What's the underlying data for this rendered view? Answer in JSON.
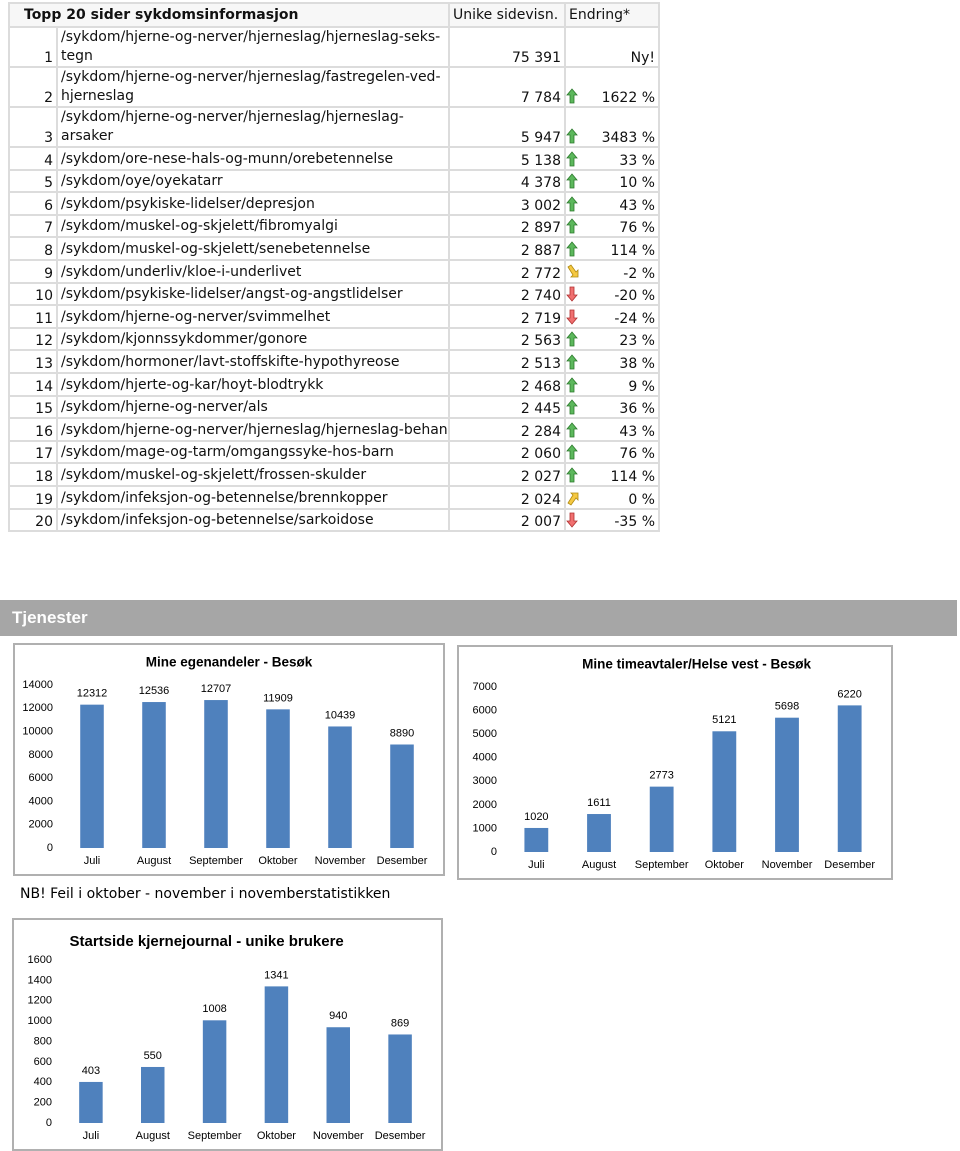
{
  "table": {
    "header": [
      "Topp 20 sider sykdomsinformasjon",
      "Unike sidevisn.",
      "Endring*"
    ],
    "rows": [
      {
        "rank": 1,
        "page": "/sykdom/hjerne-og-nerver/hjerneslag/hjerneslag-seks-tegn",
        "views": "75 391",
        "change": "Ny!"
      },
      {
        "rank": 2,
        "page": "/sykdom/hjerne-og-nerver/hjerneslag/fastregelen-ved-hjerneslag",
        "views": "7 784",
        "change": "1622 %",
        "trend": "up"
      },
      {
        "rank": 3,
        "page": "/sykdom/hjerne-og-nerver/hjerneslag/hjerneslag-arsaker",
        "views": "5 947",
        "change": "3483 %",
        "trend": "up"
      },
      {
        "rank": 4,
        "page": "/sykdom/ore-nese-hals-og-munn/orebetennelse",
        "views": "5 138",
        "change": "33 %",
        "trend": "up"
      },
      {
        "rank": 5,
        "page": "/sykdom/oye/oyekatarr",
        "views": "4 378",
        "change": "10 %",
        "trend": "up"
      },
      {
        "rank": 6,
        "page": "/sykdom/psykiske-lidelser/depresjon",
        "views": "3 002",
        "change": "43 %",
        "trend": "up"
      },
      {
        "rank": 7,
        "page": "/sykdom/muskel-og-skjelett/fibromyalgi",
        "views": "2 897",
        "change": "76 %",
        "trend": "up"
      },
      {
        "rank": 8,
        "page": "/sykdom/muskel-og-skjelett/senebetennelse",
        "views": "2 887",
        "change": "114 %",
        "trend": "up"
      },
      {
        "rank": 9,
        "page": "/sykdom/underliv/kloe-i-underlivet",
        "views": "2 772",
        "change": "-2 %",
        "trend": "down-right"
      },
      {
        "rank": 10,
        "page": "/sykdom/psykiske-lidelser/angst-og-angstlidelser",
        "views": "2 740",
        "change": "-20 %",
        "trend": "down"
      },
      {
        "rank": 11,
        "page": "/sykdom/hjerne-og-nerver/svimmelhet",
        "views": "2 719",
        "change": "-24 %",
        "trend": "down"
      },
      {
        "rank": 12,
        "page": "/sykdom/kjonnssykdommer/gonore",
        "views": "2 563",
        "change": "23 %",
        "trend": "up"
      },
      {
        "rank": 13,
        "page": "/sykdom/hormoner/lavt-stoffskifte-hypothyreose",
        "views": "2 513",
        "change": "38 %",
        "trend": "up"
      },
      {
        "rank": 14,
        "page": "/sykdom/hjerte-og-kar/hoyt-blodtrykk",
        "views": "2 468",
        "change": "9 %",
        "trend": "up"
      },
      {
        "rank": 15,
        "page": "/sykdom/hjerne-og-nerver/als",
        "views": "2 445",
        "change": "36 %",
        "trend": "up"
      },
      {
        "rank": 16,
        "page": "/sykdom/hjerne-og-nerver/hjerneslag/hjerneslag-behan",
        "views": "2 284",
        "change": "43 %",
        "trend": "up"
      },
      {
        "rank": 17,
        "page": "/sykdom/mage-og-tarm/omgangssyke-hos-barn",
        "views": "2 060",
        "change": "76 %",
        "trend": "up"
      },
      {
        "rank": 18,
        "page": "/sykdom/muskel-og-skjelett/frossen-skulder",
        "views": "2 027",
        "change": "114 %",
        "trend": "up"
      },
      {
        "rank": 19,
        "page": "/sykdom/infeksjon-og-betennelse/brennkopper",
        "views": "2 024",
        "change": "0 %",
        "trend": "up-right"
      },
      {
        "rank": 20,
        "page": "/sykdom/infeksjon-og-betennelse/sarkoidose",
        "views": "2 007",
        "change": "-35 %",
        "trend": "down"
      }
    ]
  },
  "section": "Tjenester",
  "charts": [
    {
      "type": "bar",
      "title": "Mine egenandeler - Besøk",
      "categories": [
        "Juli",
        "August",
        "September",
        "Oktober",
        "November",
        "Desember"
      ],
      "values": [
        12312,
        12536,
        12707,
        11909,
        10439,
        8890
      ],
      "color": "#4f81bd",
      "ylim": [
        0,
        14000
      ],
      "yticks": [
        0,
        2000,
        4000,
        6000,
        8000,
        10000,
        12000,
        14000
      ]
    },
    {
      "type": "bar",
      "title": "Mine timeavtaler/Helse vest - Besøk",
      "categories": [
        "Juli",
        "August",
        "September",
        "Oktober",
        "November",
        "Desember"
      ],
      "values": [
        1020,
        1611,
        2773,
        5121,
        5698,
        6220
      ],
      "color": "#4f81bd",
      "ylim": [
        0,
        7000
      ],
      "yticks": [
        0,
        1000,
        2000,
        3000,
        4000,
        5000,
        6000,
        7000
      ]
    },
    {
      "type": "bar",
      "title": "Startside kjernejournal - unike brukere",
      "categories": [
        "Juli",
        "August",
        "September",
        "Oktober",
        "November",
        "Desember"
      ],
      "values": [
        403,
        550,
        1008,
        1341,
        940,
        869
      ],
      "color": "#4f81bd",
      "ylim": [
        0,
        1600
      ],
      "yticks": [
        0,
        200,
        400,
        600,
        800,
        1000,
        1200,
        1400,
        1600
      ]
    }
  ],
  "note": "NB! Feil i oktober - november i novemberstatistikken"
}
